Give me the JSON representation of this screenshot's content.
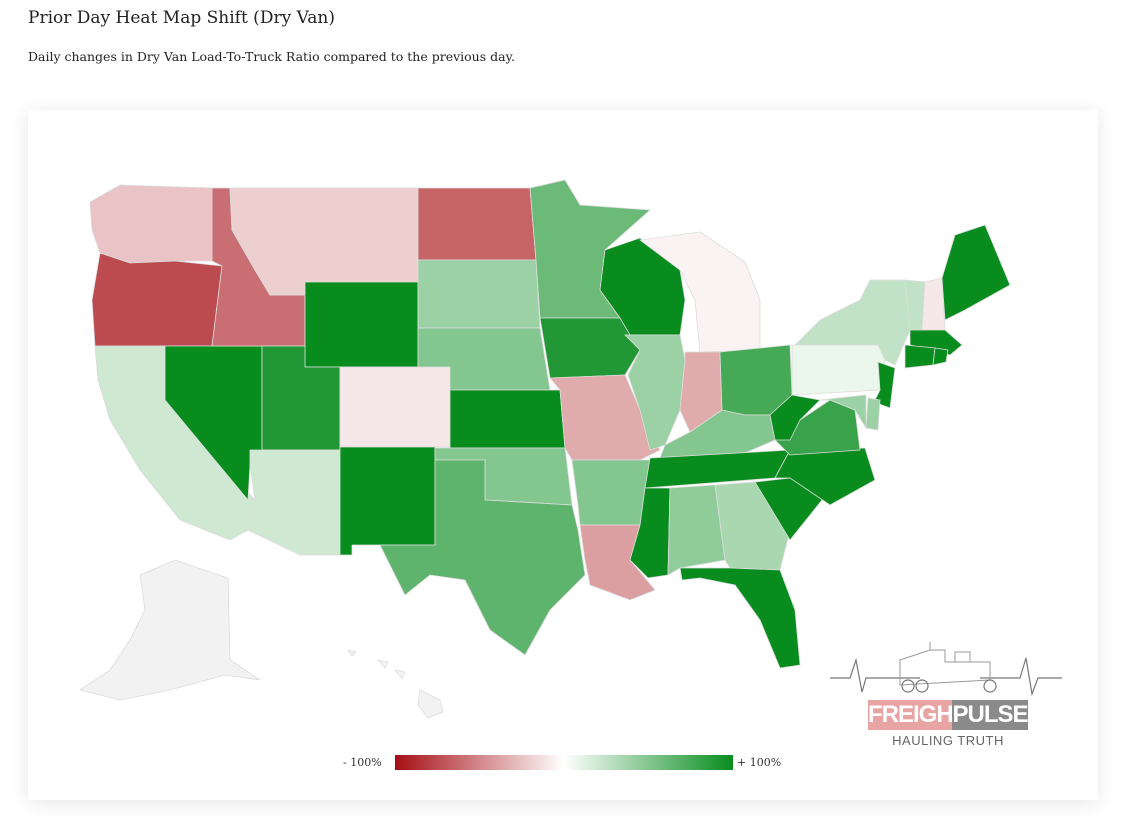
{
  "header": {
    "title": "Prior Day Heat Map Shift (Dry Van)",
    "subtitle": "Daily changes in Dry Van Load-To-Truck Ratio compared to the previous day."
  },
  "legend": {
    "min_label": "- 100%",
    "max_label": "+ 100%",
    "min_color": "#a50f15",
    "mid_color": "#ffffff",
    "max_color": "#088c1e"
  },
  "logo": {
    "word1": "FREIGHT",
    "word2": "PULSE",
    "tagline": "HAULING TRUTH",
    "icon": "truck-heartbeat-icon"
  },
  "map_data": {
    "type": "choropleth",
    "metric": "shift",
    "states": [
      {
        "code": "WA",
        "shift": -0.25
      },
      {
        "code": "OR",
        "shift": -0.75
      },
      {
        "code": "CA",
        "shift": 0.2
      },
      {
        "code": "NV",
        "shift": 1.0
      },
      {
        "code": "ID",
        "shift": -0.6
      },
      {
        "code": "MT",
        "shift": -0.2
      },
      {
        "code": "WY",
        "shift": 1.0
      },
      {
        "code": "UT",
        "shift": 0.9
      },
      {
        "code": "AZ",
        "shift": 0.2
      },
      {
        "code": "CO",
        "shift": -0.1
      },
      {
        "code": "NM",
        "shift": 1.0
      },
      {
        "code": "ND",
        "shift": -0.65
      },
      {
        "code": "SD",
        "shift": 0.4
      },
      {
        "code": "NE",
        "shift": 0.5
      },
      {
        "code": "KS",
        "shift": 1.0
      },
      {
        "code": "OK",
        "shift": 0.5
      },
      {
        "code": "TX",
        "shift": 0.65
      },
      {
        "code": "MN",
        "shift": 0.6
      },
      {
        "code": "IA",
        "shift": 0.9
      },
      {
        "code": "MO",
        "shift": -0.35
      },
      {
        "code": "AR",
        "shift": 0.5
      },
      {
        "code": "LA",
        "shift": -0.4
      },
      {
        "code": "WI",
        "shift": 1.0
      },
      {
        "code": "IL",
        "shift": 0.4
      },
      {
        "code": "MI",
        "shift": -0.05
      },
      {
        "code": "IN",
        "shift": -0.35
      },
      {
        "code": "OH",
        "shift": 0.75
      },
      {
        "code": "KY",
        "shift": 0.5
      },
      {
        "code": "TN",
        "shift": 1.0
      },
      {
        "code": "MS",
        "shift": 1.0
      },
      {
        "code": "AL",
        "shift": 0.45
      },
      {
        "code": "GA",
        "shift": 0.35
      },
      {
        "code": "FL",
        "shift": 1.0
      },
      {
        "code": "SC",
        "shift": 1.0
      },
      {
        "code": "NC",
        "shift": 1.0
      },
      {
        "code": "VA",
        "shift": 0.8
      },
      {
        "code": "WV",
        "shift": 1.0
      },
      {
        "code": "PA",
        "shift": 0.08
      },
      {
        "code": "NY",
        "shift": 0.25
      },
      {
        "code": "VT",
        "shift": 0.25
      },
      {
        "code": "NH",
        "shift": -0.1
      },
      {
        "code": "ME",
        "shift": 1.0
      },
      {
        "code": "MA",
        "shift": 1.0
      },
      {
        "code": "CT",
        "shift": 1.0
      },
      {
        "code": "RI",
        "shift": 1.0
      },
      {
        "code": "NJ",
        "shift": 1.0
      },
      {
        "code": "DE",
        "shift": 0.4
      },
      {
        "code": "MD",
        "shift": 0.4
      },
      {
        "code": "AK",
        "shift": null
      },
      {
        "code": "HI",
        "shift": null
      }
    ]
  }
}
